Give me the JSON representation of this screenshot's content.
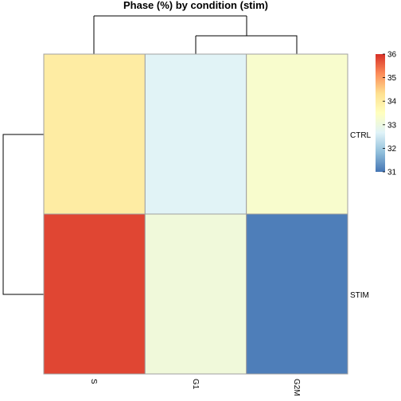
{
  "chart_data": {
    "type": "heatmap",
    "title": "Phase (%) by condition (stim)",
    "columns": [
      "S",
      "G1",
      "G2M"
    ],
    "rows": [
      "CTRL",
      "STIM"
    ],
    "values": [
      [
        34.0,
        32.7,
        33.3
      ],
      [
        35.8,
        33.1,
        31.1
      ]
    ],
    "colorbar": {
      "min": 31,
      "max": 36,
      "ticks": [
        "31",
        "32",
        "33",
        "34",
        "35",
        "36"
      ],
      "colors": [
        "#4575b4",
        "#91bfdb",
        "#e0f3f8",
        "#ffffbf",
        "#fee090",
        "#fc8d59",
        "#d73027"
      ]
    },
    "column_dendrogram": "(S,(G1,G2M))",
    "row_dendrogram": "(CTRL,STIM)"
  }
}
